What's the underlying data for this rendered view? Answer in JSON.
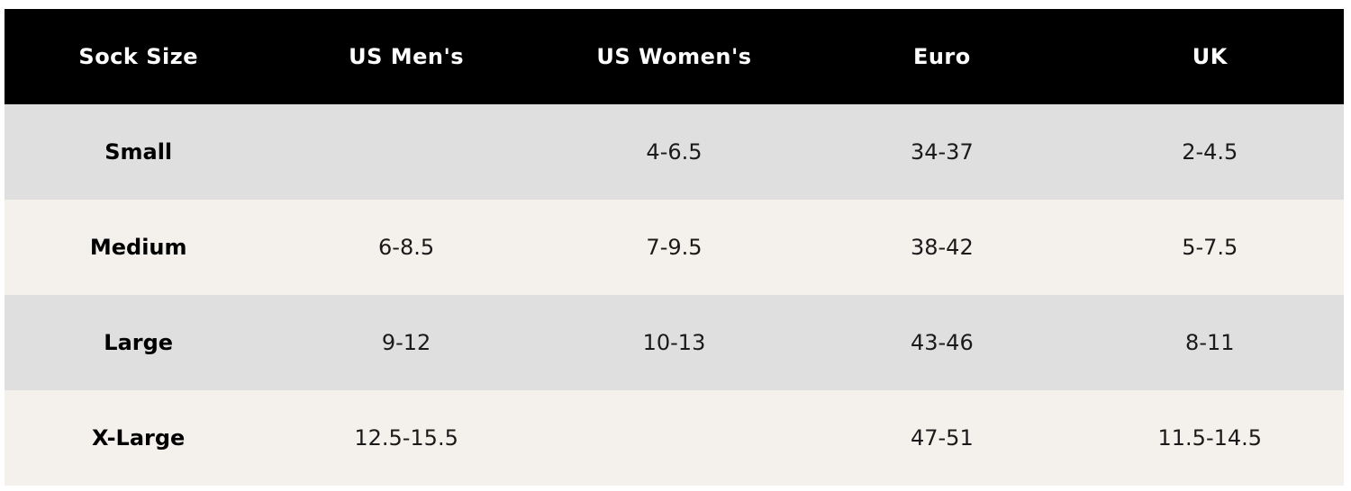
{
  "table": {
    "headers": [
      "Sock Size",
      "US Men's",
      "US Women's",
      "Euro",
      "UK"
    ],
    "rows": [
      [
        "Small",
        null,
        "4-6.5",
        "34-37",
        "2-4.5"
      ],
      [
        "Medium",
        "6-8.5",
        "7-9.5",
        "38-42",
        "5-7.5"
      ],
      [
        "Large",
        "9-12",
        "10-13",
        "43-46",
        "8-11"
      ],
      [
        "X-Large",
        "12.5-15.5",
        null,
        "47-51",
        "11.5-14.5"
      ]
    ]
  }
}
